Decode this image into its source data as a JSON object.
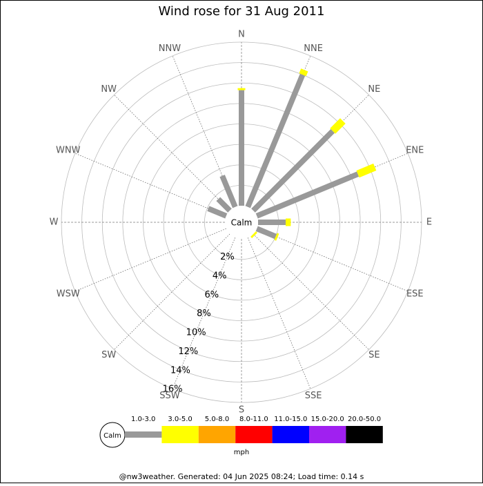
{
  "chart_data": {
    "type": "windrose",
    "title": "Wind rose for 31 Aug 2011",
    "directions": [
      "N",
      "NNE",
      "NE",
      "ENE",
      "E",
      "ESE",
      "SE",
      "SSE",
      "S",
      "SSW",
      "SW",
      "WSW",
      "W",
      "WNW",
      "NW",
      "NNW"
    ],
    "calm_label": "Calm",
    "rlim": [
      0,
      16
    ],
    "rticks": [
      {
        "value": 2,
        "label": "2%"
      },
      {
        "value": 4,
        "label": "4%"
      },
      {
        "value": 6,
        "label": "6%"
      },
      {
        "value": 8,
        "label": "8%"
      },
      {
        "value": 10,
        "label": "10%"
      },
      {
        "value": 12,
        "label": "12%"
      },
      {
        "value": 14,
        "label": "14%"
      },
      {
        "value": 16,
        "label": "16%"
      }
    ],
    "series": [
      {
        "name": "1.0-3.0",
        "color": "#999999",
        "values": [
          11.3,
          14.0,
          11.0,
          10.7,
          2.7,
          2.0,
          0,
          0,
          0,
          0,
          0,
          0,
          0,
          1.9,
          1.6,
          3.3
        ]
      },
      {
        "name": "3.0-5.0",
        "color": "#ffff00",
        "values": [
          0.2,
          0.5,
          1.4,
          1.8,
          0.5,
          0.2,
          0.2,
          0,
          0,
          0,
          0,
          0,
          0,
          0,
          0,
          0
        ]
      },
      {
        "name": "5.0-8.0",
        "color": "#ffa500",
        "values": [
          0,
          0,
          0,
          0,
          0,
          0,
          0,
          0,
          0,
          0,
          0,
          0,
          0,
          0,
          0,
          0
        ]
      },
      {
        "name": "8.0-11.0",
        "color": "#ff0000",
        "values": [
          0,
          0,
          0,
          0,
          0,
          0,
          0,
          0,
          0,
          0,
          0,
          0,
          0,
          0,
          0,
          0
        ]
      },
      {
        "name": "11.0-15.0",
        "color": "#0000ff",
        "values": [
          0,
          0,
          0,
          0,
          0,
          0,
          0,
          0,
          0,
          0,
          0,
          0,
          0,
          0,
          0,
          0
        ]
      },
      {
        "name": "15.0-20.0",
        "color": "#a020f0",
        "values": [
          0,
          0,
          0,
          0,
          0,
          0,
          0,
          0,
          0,
          0,
          0,
          0,
          0,
          0,
          0,
          0
        ]
      },
      {
        "name": "20.0-50.0",
        "color": "#000000",
        "values": [
          0,
          0,
          0,
          0,
          0,
          0,
          0,
          0,
          0,
          0,
          0,
          0,
          0,
          0,
          0,
          0
        ]
      }
    ],
    "legend_unit": "mph",
    "footer": "@nw3weather. Generated: 04 Jun 2025 08:24; Load time: 0.14 s"
  }
}
